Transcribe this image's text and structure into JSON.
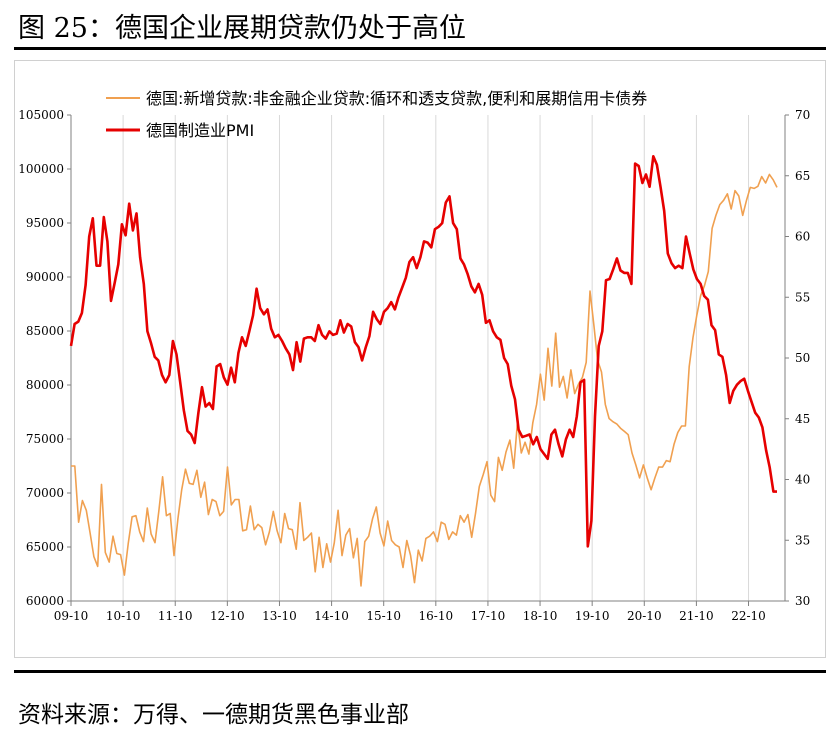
{
  "title": "图 25：德国企业展期贷款仍处于高位",
  "source": "资料来源：万得、一德期货黑色事业部",
  "chart_data": {
    "type": "line",
    "x_ticks": [
      "09-10",
      "10-10",
      "11-10",
      "12-10",
      "13-10",
      "14-10",
      "15-10",
      "16-10",
      "17-10",
      "18-10",
      "19-10",
      "20-10",
      "21-10",
      "22-10"
    ],
    "y_left": {
      "min": 60000,
      "max": 105000,
      "step": 5000,
      "ticks": [
        "60000",
        "65000",
        "70000",
        "75000",
        "80000",
        "85000",
        "90000",
        "95000",
        "100000",
        "105000"
      ]
    },
    "y_right": {
      "min": 30,
      "max": 70,
      "step": 5,
      "ticks": [
        "30",
        "35",
        "40",
        "45",
        "50",
        "55",
        "60",
        "65",
        "70"
      ]
    },
    "grid": "vertical",
    "legend_position": "top-left",
    "series": [
      {
        "name": "德国:新增贷款:非金融企业贷款:循环和透支贷款,便利和展期信用卡债券",
        "axis": "left",
        "color": "#f0a050",
        "values": [
          72500,
          72500,
          67300,
          69300,
          68400,
          66300,
          64100,
          63200,
          70800,
          64500,
          63600,
          66000,
          64400,
          64300,
          62400,
          65300,
          67800,
          67900,
          66400,
          65500,
          68600,
          66200,
          65400,
          68300,
          71500,
          67900,
          68100,
          64200,
          67600,
          70300,
          72200,
          70900,
          70800,
          72100,
          69600,
          71000,
          68000,
          69400,
          69200,
          67900,
          68300,
          72400,
          68900,
          69400,
          69400,
          66500,
          66600,
          68800,
          66600,
          67100,
          66800,
          65200,
          66400,
          68300,
          66500,
          65400,
          68100,
          66700,
          66600,
          64800,
          69100,
          65600,
          65900,
          66300,
          62700,
          65900,
          63100,
          65300,
          63600,
          65400,
          68400,
          64200,
          66100,
          66700,
          64000,
          65800,
          61400,
          65500,
          66000,
          67600,
          68700,
          66300,
          65100,
          67400,
          65600,
          65200,
          65000,
          63100,
          65600,
          64200,
          61700,
          64700,
          63700,
          65800,
          66000,
          66400,
          65500,
          67300,
          67100,
          65700,
          66400,
          66100,
          67900,
          67300,
          68000,
          65900,
          68100,
          70600,
          71700,
          72900,
          69800,
          69200,
          73300,
          72100,
          73800,
          74900,
          72300,
          76600,
          73700,
          74700,
          73600,
          76500,
          78200,
          81000,
          78600,
          83400,
          79900,
          84800,
          79800,
          80800,
          78800,
          81400,
          79200,
          80100,
          80700,
          82100,
          88700,
          85600,
          82300,
          81200,
          78200,
          76900,
          76600,
          76400,
          76000,
          75700,
          75400,
          73700,
          72600,
          71400,
          72600,
          71400,
          70300,
          71400,
          72400,
          72400,
          73000,
          72900,
          74500,
          75600,
          76200,
          76200,
          81700,
          84400,
          86500,
          88300,
          89200,
          90500,
          94500,
          95700,
          96700,
          97100,
          97700,
          96300,
          98000,
          97500,
          95700,
          97100,
          98300,
          98200,
          98400,
          99300,
          98700,
          99500,
          99000,
          98300
        ]
      },
      {
        "name": "德国制造业PMI",
        "axis": "right",
        "color": "#e60000",
        "values": [
          51.0,
          52.8,
          53.0,
          53.7,
          56.0,
          60.0,
          61.5,
          57.6,
          57.6,
          61.6,
          59.6,
          54.7,
          56.2,
          57.7,
          61.0,
          60.1,
          62.7,
          60.5,
          61.9,
          58.3,
          56.1,
          52.2,
          51.2,
          50.1,
          49.8,
          48.6,
          48.0,
          48.6,
          51.4,
          50.3,
          48.0,
          45.7,
          44.0,
          43.7,
          43.0,
          45.5,
          47.6,
          46.0,
          46.3,
          45.8,
          49.3,
          49.5,
          48.4,
          47.8,
          49.2,
          48.0,
          50.4,
          51.7,
          51.0,
          52.2,
          53.5,
          55.7,
          54.1,
          53.6,
          54.0,
          52.4,
          51.7,
          51.9,
          51.4,
          50.8,
          50.3,
          49.0,
          51.3,
          49.7,
          51.6,
          51.7,
          51.7,
          51.4,
          52.7,
          51.9,
          51.6,
          52.2,
          51.9,
          52.0,
          53.1,
          52.1,
          52.8,
          52.6,
          51.3,
          50.9,
          49.8,
          50.9,
          51.8,
          53.8,
          53.2,
          52.8,
          53.8,
          54.1,
          54.6,
          54.0,
          55.0,
          55.8,
          56.6,
          57.9,
          58.3,
          57.4,
          58.3,
          59.6,
          59.5,
          59.1,
          60.6,
          60.8,
          61.1,
          62.8,
          63.3,
          61.1,
          60.6,
          58.2,
          57.7,
          56.9,
          55.9,
          55.4,
          56.1,
          55.2,
          52.9,
          53.1,
          52.2,
          51.7,
          51.5,
          50.0,
          49.5,
          47.7,
          46.6,
          44.1,
          43.5,
          43.6,
          43.7,
          42.9,
          43.5,
          42.5,
          42.1,
          41.7,
          43.7,
          44.1,
          42.9,
          41.9,
          43.3,
          44.1,
          43.5,
          45.2,
          48.0,
          48.2,
          34.5,
          36.6,
          45.2,
          51.0,
          52.2,
          56.4,
          56.5,
          57.3,
          58.2,
          57.2,
          57.0,
          57.0,
          56.1,
          66.0,
          65.8,
          64.4,
          65.1,
          64.1,
          66.6,
          65.9,
          64.1,
          62.1,
          58.6,
          57.8,
          57.4,
          57.6,
          57.4,
          60.0,
          58.6,
          57.3,
          56.5,
          56.1,
          55.1,
          54.8,
          52.7,
          52.3,
          50.3,
          50.1,
          48.6,
          46.3,
          47.3,
          47.8,
          48.1,
          48.3,
          47.3,
          46.4,
          45.5,
          45.1,
          44.3,
          42.4,
          41.0,
          39.0,
          39.0
        ]
      }
    ]
  }
}
